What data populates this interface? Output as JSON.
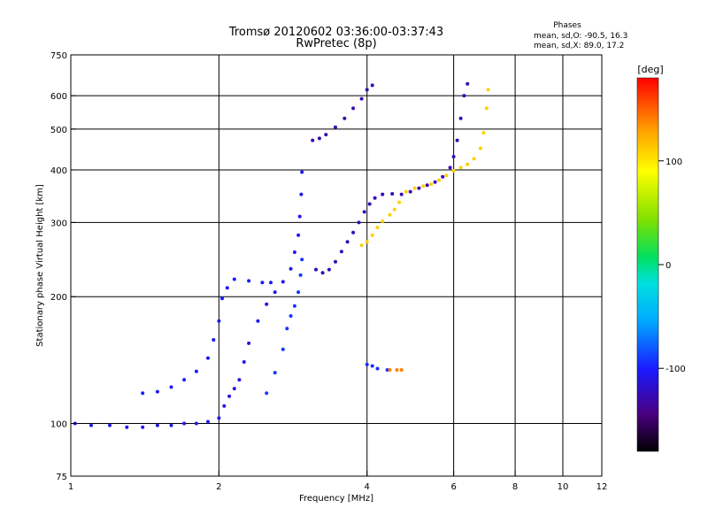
{
  "chart_data": {
    "type": "scatter",
    "title": "Tromsø 20120602 03:36:00-03:37:43",
    "subtitle": "RwPretec (8p)",
    "info_title": "Phases",
    "info_lines": [
      "mean, sd,O: -90.5, 16.3",
      "mean, sd,X:  89.0, 17.2"
    ],
    "xlabel": "Frequency [MHz]",
    "ylabel": "Stationary phase Virtual Height [km]",
    "x_scale": "log",
    "y_scale": "log",
    "xlim": [
      1,
      12
    ],
    "ylim": [
      75,
      750
    ],
    "x_ticks": [
      1,
      2,
      4,
      6,
      8,
      10,
      12
    ],
    "x_tick_labels": [
      "1",
      "2",
      "4",
      "6",
      "8",
      "10",
      "12"
    ],
    "x_grid": [
      2,
      4,
      6,
      8,
      10
    ],
    "y_ticks": [
      75,
      100,
      200,
      300,
      400,
      500,
      600,
      750
    ],
    "y_tick_labels": [
      "75",
      "100",
      "200",
      "300",
      "400",
      "500",
      "600",
      "750"
    ],
    "y_grid": [
      100,
      200,
      300,
      400,
      500,
      600
    ],
    "grid": true,
    "colorbar": {
      "label": "[deg]",
      "range": [
        -180,
        180
      ],
      "ticks": [
        100,
        0,
        -100
      ],
      "tick_labels": [
        "100",
        "0",
        "-100"
      ]
    },
    "series": [
      {
        "color_deg": -108,
        "points": [
          [
            1.02,
            100
          ],
          [
            1.1,
            99
          ],
          [
            1.2,
            99
          ],
          [
            1.3,
            98
          ],
          [
            1.4,
            98
          ],
          [
            1.5,
            99
          ],
          [
            1.6,
            99
          ],
          [
            1.7,
            100
          ],
          [
            1.8,
            100
          ],
          [
            1.9,
            101
          ],
          [
            2.0,
            103
          ],
          [
            2.05,
            110
          ],
          [
            2.1,
            116
          ],
          [
            2.15,
            121
          ],
          [
            2.2,
            127
          ],
          [
            2.25,
            140
          ],
          [
            2.3,
            155
          ],
          [
            2.4,
            175
          ],
          [
            2.5,
            192
          ],
          [
            2.6,
            205
          ],
          [
            2.7,
            217
          ],
          [
            2.8,
            233
          ],
          [
            2.85,
            255
          ],
          [
            2.9,
            280
          ],
          [
            2.92,
            310
          ],
          [
            2.94,
            350
          ],
          [
            2.95,
            395
          ]
        ]
      },
      {
        "color_deg": -102,
        "points": [
          [
            1.4,
            118
          ],
          [
            1.5,
            119
          ],
          [
            1.6,
            122
          ],
          [
            1.7,
            127
          ],
          [
            1.8,
            133
          ],
          [
            1.9,
            143
          ],
          [
            1.95,
            158
          ],
          [
            2.0,
            175
          ],
          [
            2.03,
            198
          ],
          [
            2.08,
            210
          ],
          [
            2.15,
            220
          ],
          [
            2.3,
            218
          ],
          [
            2.45,
            216
          ],
          [
            2.55,
            216
          ]
        ]
      },
      {
        "color_deg": -92,
        "points": [
          [
            2.5,
            118
          ],
          [
            2.6,
            132
          ],
          [
            2.7,
            150
          ],
          [
            2.75,
            168
          ],
          [
            2.8,
            180
          ],
          [
            2.85,
            190
          ],
          [
            2.9,
            205
          ],
          [
            2.93,
            225
          ],
          [
            2.95,
            245
          ]
        ]
      },
      {
        "color_deg": -125,
        "points": [
          [
            3.15,
            232
          ],
          [
            3.25,
            228
          ],
          [
            3.35,
            232
          ],
          [
            3.45,
            242
          ],
          [
            3.55,
            256
          ],
          [
            3.65,
            270
          ],
          [
            3.75,
            284
          ],
          [
            3.85,
            300
          ],
          [
            3.95,
            318
          ],
          [
            4.05,
            332
          ],
          [
            4.15,
            343
          ],
          [
            4.3,
            350
          ],
          [
            4.5,
            351
          ],
          [
            4.7,
            350
          ],
          [
            4.9,
            355
          ],
          [
            5.1,
            362
          ],
          [
            5.3,
            368
          ],
          [
            5.5,
            374
          ],
          [
            5.7,
            385
          ],
          [
            5.9,
            405
          ],
          [
            6.0,
            430
          ],
          [
            6.1,
            470
          ],
          [
            6.2,
            530
          ],
          [
            6.3,
            600
          ],
          [
            6.4,
            640
          ]
        ]
      },
      {
        "color_deg": -128,
        "points": [
          [
            3.1,
            470
          ],
          [
            3.2,
            475
          ],
          [
            3.3,
            485
          ],
          [
            3.45,
            505
          ],
          [
            3.6,
            530
          ],
          [
            3.75,
            560
          ],
          [
            3.9,
            590
          ],
          [
            4.0,
            620
          ],
          [
            4.1,
            635
          ]
        ]
      },
      {
        "color_deg": 110,
        "points": [
          [
            3.9,
            265
          ],
          [
            4.0,
            270
          ],
          [
            4.1,
            280
          ],
          [
            4.2,
            292
          ],
          [
            4.3,
            302
          ],
          [
            4.45,
            313
          ],
          [
            4.55,
            322
          ],
          [
            4.65,
            335
          ],
          [
            4.8,
            355
          ],
          [
            5.0,
            362
          ],
          [
            5.2,
            366
          ],
          [
            5.4,
            370
          ],
          [
            5.6,
            378
          ],
          [
            5.8,
            388
          ],
          [
            6.0,
            398
          ],
          [
            6.2,
            405
          ],
          [
            6.4,
            412
          ],
          [
            6.6,
            425
          ],
          [
            6.8,
            450
          ],
          [
            6.9,
            490
          ],
          [
            7.0,
            560
          ],
          [
            7.05,
            620
          ]
        ]
      },
      {
        "color_deg": -95,
        "points": [
          [
            4.0,
            138
          ],
          [
            4.1,
            137
          ],
          [
            4.2,
            135
          ],
          [
            4.4,
            134
          ]
        ]
      },
      {
        "color_deg": 140,
        "points": [
          [
            4.45,
            134
          ],
          [
            4.6,
            134
          ],
          [
            4.7,
            134
          ]
        ]
      }
    ]
  }
}
